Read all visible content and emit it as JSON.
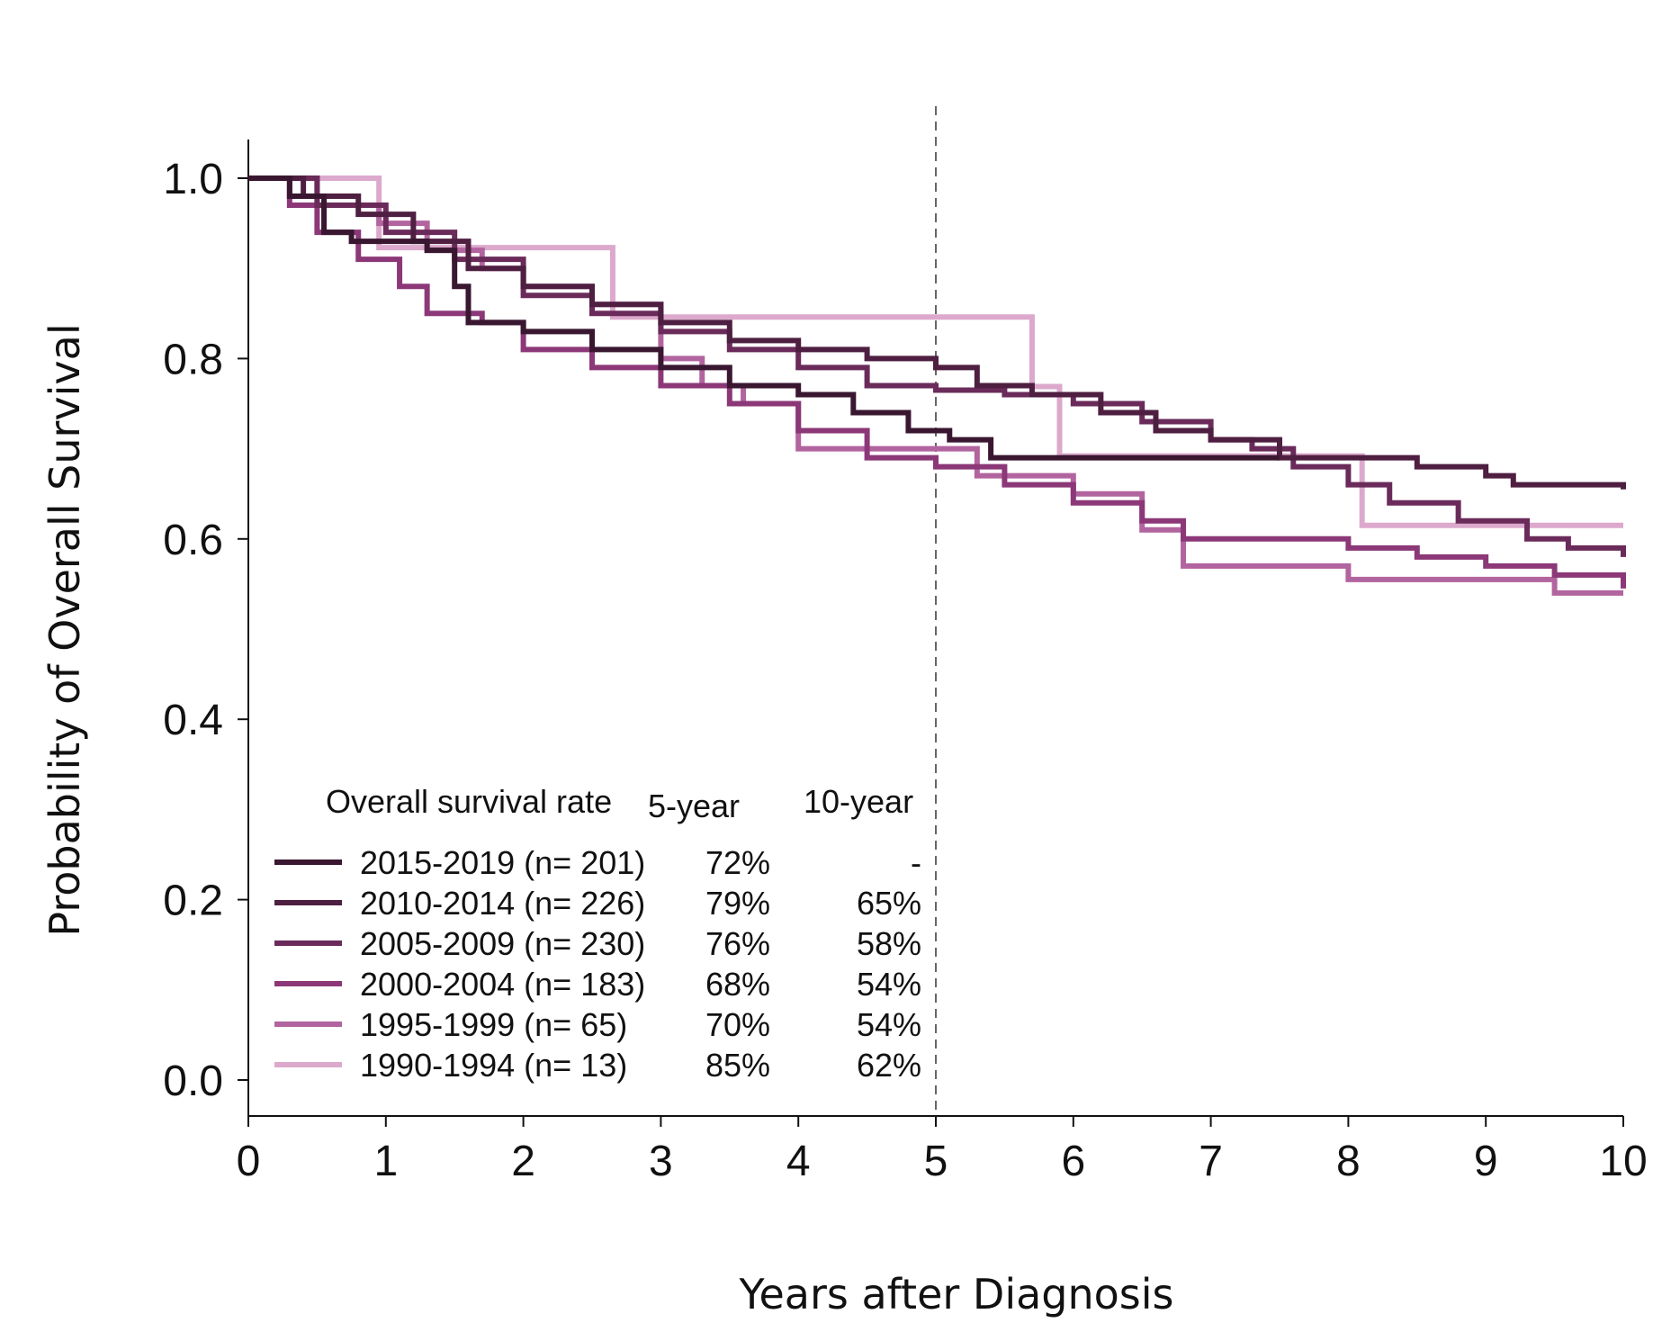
{
  "chart_data": {
    "type": "line",
    "title": "",
    "xlabel": "Years after Diagnosis",
    "ylabel": "Probability of Overall Survival",
    "xlim": [
      0,
      10
    ],
    "ylim": [
      0,
      1.0
    ],
    "x_ticks": [
      "0",
      "1",
      "2",
      "3",
      "4",
      "5",
      "6",
      "7",
      "8",
      "9",
      "10"
    ],
    "y_ticks": [
      "0.0",
      "0.2",
      "0.4",
      "0.6",
      "0.8",
      "1.0"
    ],
    "reference_line_x": 5,
    "grid": false,
    "legend": {
      "placement": "bottom-left",
      "header": "Overall survival rate",
      "col_5yr": "5-year",
      "col_10yr": "10-year"
    },
    "series": [
      {
        "name": "2015-2019 (n= 201)",
        "five_year": "72%",
        "ten_year": "-",
        "color": "#3a1730",
        "points": [
          [
            0,
            1.0
          ],
          [
            0.3,
            0.98
          ],
          [
            0.55,
            0.94
          ],
          [
            0.75,
            0.93
          ],
          [
            1.3,
            0.92
          ],
          [
            1.5,
            0.88
          ],
          [
            1.6,
            0.84
          ],
          [
            2.0,
            0.83
          ],
          [
            2.5,
            0.81
          ],
          [
            3.0,
            0.79
          ],
          [
            3.5,
            0.77
          ],
          [
            4.0,
            0.76
          ],
          [
            4.4,
            0.74
          ],
          [
            4.8,
            0.72
          ],
          [
            5.1,
            0.71
          ],
          [
            5.4,
            0.69
          ],
          [
            7.5,
            0.69
          ],
          [
            7.5,
            0.69
          ]
        ]
      },
      {
        "name": "2010-2014 (n= 226)",
        "five_year": "79%",
        "ten_year": "65%",
        "color": "#4e1f41",
        "points": [
          [
            0,
            1.0
          ],
          [
            0.4,
            0.98
          ],
          [
            0.8,
            0.96
          ],
          [
            1.2,
            0.93
          ],
          [
            1.6,
            0.9
          ],
          [
            2.0,
            0.88
          ],
          [
            2.5,
            0.86
          ],
          [
            3.0,
            0.84
          ],
          [
            3.5,
            0.82
          ],
          [
            4.0,
            0.81
          ],
          [
            4.5,
            0.8
          ],
          [
            5.0,
            0.79
          ],
          [
            5.3,
            0.77
          ],
          [
            5.7,
            0.76
          ],
          [
            6.2,
            0.74
          ],
          [
            6.6,
            0.72
          ],
          [
            7.0,
            0.71
          ],
          [
            7.5,
            0.69
          ],
          [
            8.0,
            0.69
          ],
          [
            8.5,
            0.68
          ],
          [
            9.0,
            0.67
          ],
          [
            9.2,
            0.66
          ],
          [
            10.0,
            0.655
          ]
        ]
      },
      {
        "name": "2005-2009 (n= 230)",
        "five_year": "76%",
        "ten_year": "58%",
        "color": "#6a2b5a",
        "points": [
          [
            0,
            1.0
          ],
          [
            0.5,
            0.97
          ],
          [
            1.0,
            0.94
          ],
          [
            1.5,
            0.91
          ],
          [
            2.0,
            0.87
          ],
          [
            2.5,
            0.85
          ],
          [
            3.0,
            0.83
          ],
          [
            3.5,
            0.81
          ],
          [
            4.0,
            0.79
          ],
          [
            4.5,
            0.77
          ],
          [
            5.0,
            0.765
          ],
          [
            5.5,
            0.76
          ],
          [
            6.0,
            0.75
          ],
          [
            6.5,
            0.73
          ],
          [
            7.0,
            0.71
          ],
          [
            7.3,
            0.7
          ],
          [
            7.6,
            0.68
          ],
          [
            8.0,
            0.66
          ],
          [
            8.3,
            0.64
          ],
          [
            8.8,
            0.62
          ],
          [
            9.3,
            0.6
          ],
          [
            9.6,
            0.59
          ],
          [
            10.0,
            0.58
          ]
        ]
      },
      {
        "name": "2000-2004 (n= 183)",
        "five_year": "68%",
        "ten_year": "54%",
        "color": "#8c3878",
        "points": [
          [
            0,
            1.0
          ],
          [
            0.3,
            0.97
          ],
          [
            0.5,
            0.94
          ],
          [
            0.8,
            0.91
          ],
          [
            1.1,
            0.88
          ],
          [
            1.3,
            0.85
          ],
          [
            1.7,
            0.84
          ],
          [
            2.0,
            0.81
          ],
          [
            2.5,
            0.79
          ],
          [
            3.0,
            0.77
          ],
          [
            3.5,
            0.75
          ],
          [
            4.0,
            0.72
          ],
          [
            4.5,
            0.69
          ],
          [
            5.0,
            0.68
          ],
          [
            5.5,
            0.66
          ],
          [
            6.0,
            0.64
          ],
          [
            6.5,
            0.62
          ],
          [
            6.8,
            0.6
          ],
          [
            7.5,
            0.6
          ],
          [
            8.0,
            0.59
          ],
          [
            8.5,
            0.58
          ],
          [
            9.0,
            0.57
          ],
          [
            9.5,
            0.56
          ],
          [
            10.0,
            0.545
          ]
        ]
      },
      {
        "name": "1995-1999 (n= 65)",
        "five_year": "70%",
        "ten_year": "54%",
        "color": "#b2649f",
        "points": [
          [
            0,
            1.0
          ],
          [
            0.5,
            0.97
          ],
          [
            0.95,
            0.95
          ],
          [
            1.3,
            0.92
          ],
          [
            1.7,
            0.9
          ],
          [
            2.0,
            0.88
          ],
          [
            2.5,
            0.86
          ],
          [
            3.0,
            0.8
          ],
          [
            3.3,
            0.77
          ],
          [
            3.6,
            0.75
          ],
          [
            4.0,
            0.7
          ],
          [
            5.3,
            0.7
          ],
          [
            5.3,
            0.67
          ],
          [
            6.0,
            0.65
          ],
          [
            6.5,
            0.61
          ],
          [
            6.8,
            0.57
          ],
          [
            8.0,
            0.57
          ],
          [
            8.0,
            0.555
          ],
          [
            9.5,
            0.555
          ],
          [
            9.5,
            0.54
          ],
          [
            10.0,
            0.54
          ]
        ]
      },
      {
        "name": "1990-1994 (n= 13)",
        "five_year": "85%",
        "ten_year": "62%",
        "color": "#dca9cc",
        "points": [
          [
            0,
            1.0
          ],
          [
            0.95,
            1.0
          ],
          [
            0.95,
            0.923
          ],
          [
            2.65,
            0.923
          ],
          [
            2.65,
            0.846
          ],
          [
            5.7,
            0.846
          ],
          [
            5.7,
            0.769
          ],
          [
            5.9,
            0.769
          ],
          [
            5.9,
            0.692
          ],
          [
            8.1,
            0.692
          ],
          [
            8.1,
            0.615
          ],
          [
            10.0,
            0.615
          ]
        ]
      }
    ]
  }
}
